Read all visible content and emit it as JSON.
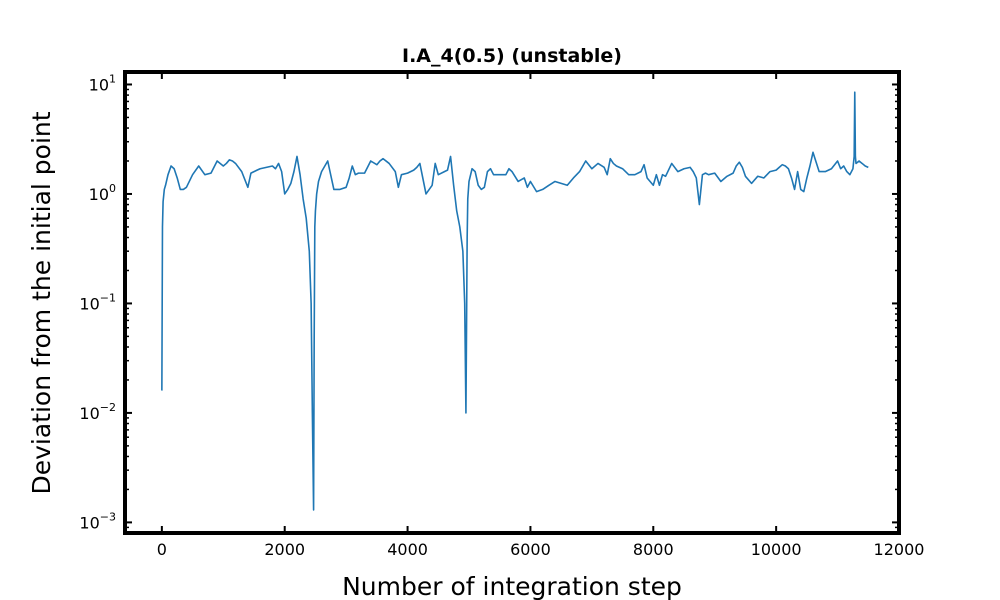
{
  "chart_data": {
    "type": "line",
    "title": "I.A_4(0.5) (unstable)",
    "xlabel": "Number of integration step",
    "ylabel": "Deviation from the initial point",
    "xlim": [
      -600,
      12000
    ],
    "ylim": [
      0.0008,
      13
    ],
    "yscale": "log",
    "grid": false,
    "legend": "none",
    "line_color": "#1f77b4",
    "x_ticks": [
      {
        "value": 0,
        "label": "0"
      },
      {
        "value": 2000,
        "label": "2000"
      },
      {
        "value": 4000,
        "label": "4000"
      },
      {
        "value": 6000,
        "label": "6000"
      },
      {
        "value": 8000,
        "label": "8000"
      },
      {
        "value": 10000,
        "label": "10000"
      },
      {
        "value": 12000,
        "label": "12000"
      }
    ],
    "y_ticks": [
      {
        "value": 0.001,
        "base": "10",
        "exp": "−3"
      },
      {
        "value": 0.01,
        "base": "10",
        "exp": "−2"
      },
      {
        "value": 0.1,
        "base": "10",
        "exp": "−1"
      },
      {
        "value": 1,
        "base": "10",
        "exp": "0"
      },
      {
        "value": 10,
        "base": "10",
        "exp": "1"
      }
    ],
    "series": [
      {
        "x": [
          0,
          10,
          20,
          40,
          60,
          100,
          150,
          200,
          250,
          300,
          350,
          400,
          500,
          600,
          700,
          800,
          900,
          1000,
          1050,
          1100,
          1150,
          1200,
          1300,
          1400,
          1450,
          1500,
          1550,
          1600,
          1700,
          1800,
          1850,
          1900,
          1950,
          2000,
          2050,
          2100,
          2150,
          2200,
          2250,
          2300,
          2350,
          2400,
          2430,
          2450,
          2470,
          2480,
          2490,
          2500,
          2520,
          2550,
          2600,
          2700,
          2800,
          2900,
          3000,
          3050,
          3100,
          3150,
          3200,
          3300,
          3400,
          3500,
          3550,
          3600,
          3700,
          3800,
          3850,
          3900,
          4000,
          4100,
          4150,
          4200,
          4300,
          4400,
          4450,
          4500,
          4600,
          4650,
          4700,
          4750,
          4800,
          4850,
          4900,
          4930,
          4950,
          4960,
          4970,
          4980,
          5000,
          5050,
          5100,
          5150,
          5200,
          5250,
          5300,
          5350,
          5400,
          5500,
          5600,
          5650,
          5700,
          5800,
          5900,
          5950,
          6000,
          6100,
          6200,
          6300,
          6400,
          6500,
          6600,
          6700,
          6800,
          6900,
          7000,
          7100,
          7200,
          7250,
          7300,
          7350,
          7400,
          7500,
          7600,
          7700,
          7800,
          7850,
          7900,
          8000,
          8050,
          8100,
          8150,
          8200,
          8300,
          8400,
          8500,
          8600,
          8650,
          8700,
          8750,
          8800,
          8850,
          8900,
          9000,
          9100,
          9200,
          9300,
          9350,
          9400,
          9450,
          9500,
          9600,
          9700,
          9800,
          9900,
          10000,
          10050,
          10100,
          10150,
          10200,
          10250,
          10300,
          10350,
          10400,
          10450,
          10500,
          10550,
          10600,
          10700,
          10800,
          10900,
          11000,
          11050,
          11100,
          11150,
          11200,
          11250,
          11270,
          11280,
          11290,
          11300,
          11350,
          11400,
          11450,
          11500
        ],
        "y": [
          0.016,
          0.5,
          0.85,
          1.1,
          1.2,
          1.5,
          1.8,
          1.7,
          1.4,
          1.1,
          1.1,
          1.15,
          1.5,
          1.8,
          1.5,
          1.55,
          2.0,
          1.8,
          1.9,
          2.05,
          2.0,
          1.9,
          1.6,
          1.15,
          1.55,
          1.6,
          1.65,
          1.7,
          1.75,
          1.8,
          1.7,
          1.9,
          1.6,
          1.0,
          1.1,
          1.25,
          1.6,
          2.2,
          1.5,
          0.9,
          0.6,
          0.3,
          0.1,
          0.01,
          0.0013,
          0.05,
          0.5,
          0.7,
          1.0,
          1.3,
          1.6,
          2.0,
          1.1,
          1.1,
          1.15,
          1.4,
          1.8,
          1.5,
          1.55,
          1.55,
          2.0,
          1.85,
          2.0,
          2.1,
          1.9,
          1.6,
          1.15,
          1.5,
          1.55,
          1.65,
          1.75,
          1.9,
          1.0,
          1.2,
          1.9,
          1.5,
          1.6,
          1.65,
          2.2,
          1.2,
          0.7,
          0.5,
          0.3,
          0.1,
          0.01,
          0.06,
          0.4,
          0.9,
          1.3,
          1.7,
          1.6,
          1.2,
          1.1,
          1.15,
          1.6,
          1.7,
          1.5,
          1.5,
          1.5,
          1.7,
          1.6,
          1.3,
          1.4,
          1.15,
          1.3,
          1.05,
          1.1,
          1.2,
          1.3,
          1.25,
          1.2,
          1.4,
          1.6,
          2.0,
          1.7,
          1.9,
          1.75,
          1.5,
          2.1,
          1.9,
          1.8,
          1.7,
          1.5,
          1.5,
          1.6,
          1.85,
          1.4,
          1.2,
          1.5,
          1.2,
          1.5,
          1.45,
          1.9,
          1.6,
          1.7,
          1.75,
          1.6,
          1.4,
          0.8,
          1.5,
          1.55,
          1.5,
          1.55,
          1.3,
          1.45,
          1.55,
          1.8,
          1.95,
          1.75,
          1.45,
          1.25,
          1.45,
          1.4,
          1.6,
          1.65,
          1.75,
          1.85,
          1.8,
          1.7,
          1.4,
          1.1,
          1.6,
          1.1,
          1.05,
          1.4,
          1.8,
          2.4,
          1.6,
          1.6,
          1.7,
          2.0,
          1.7,
          1.8,
          1.6,
          1.5,
          1.7,
          2.2,
          8.5,
          2.2,
          1.9,
          2.0,
          1.9,
          1.8,
          1.75
        ]
      }
    ]
  }
}
